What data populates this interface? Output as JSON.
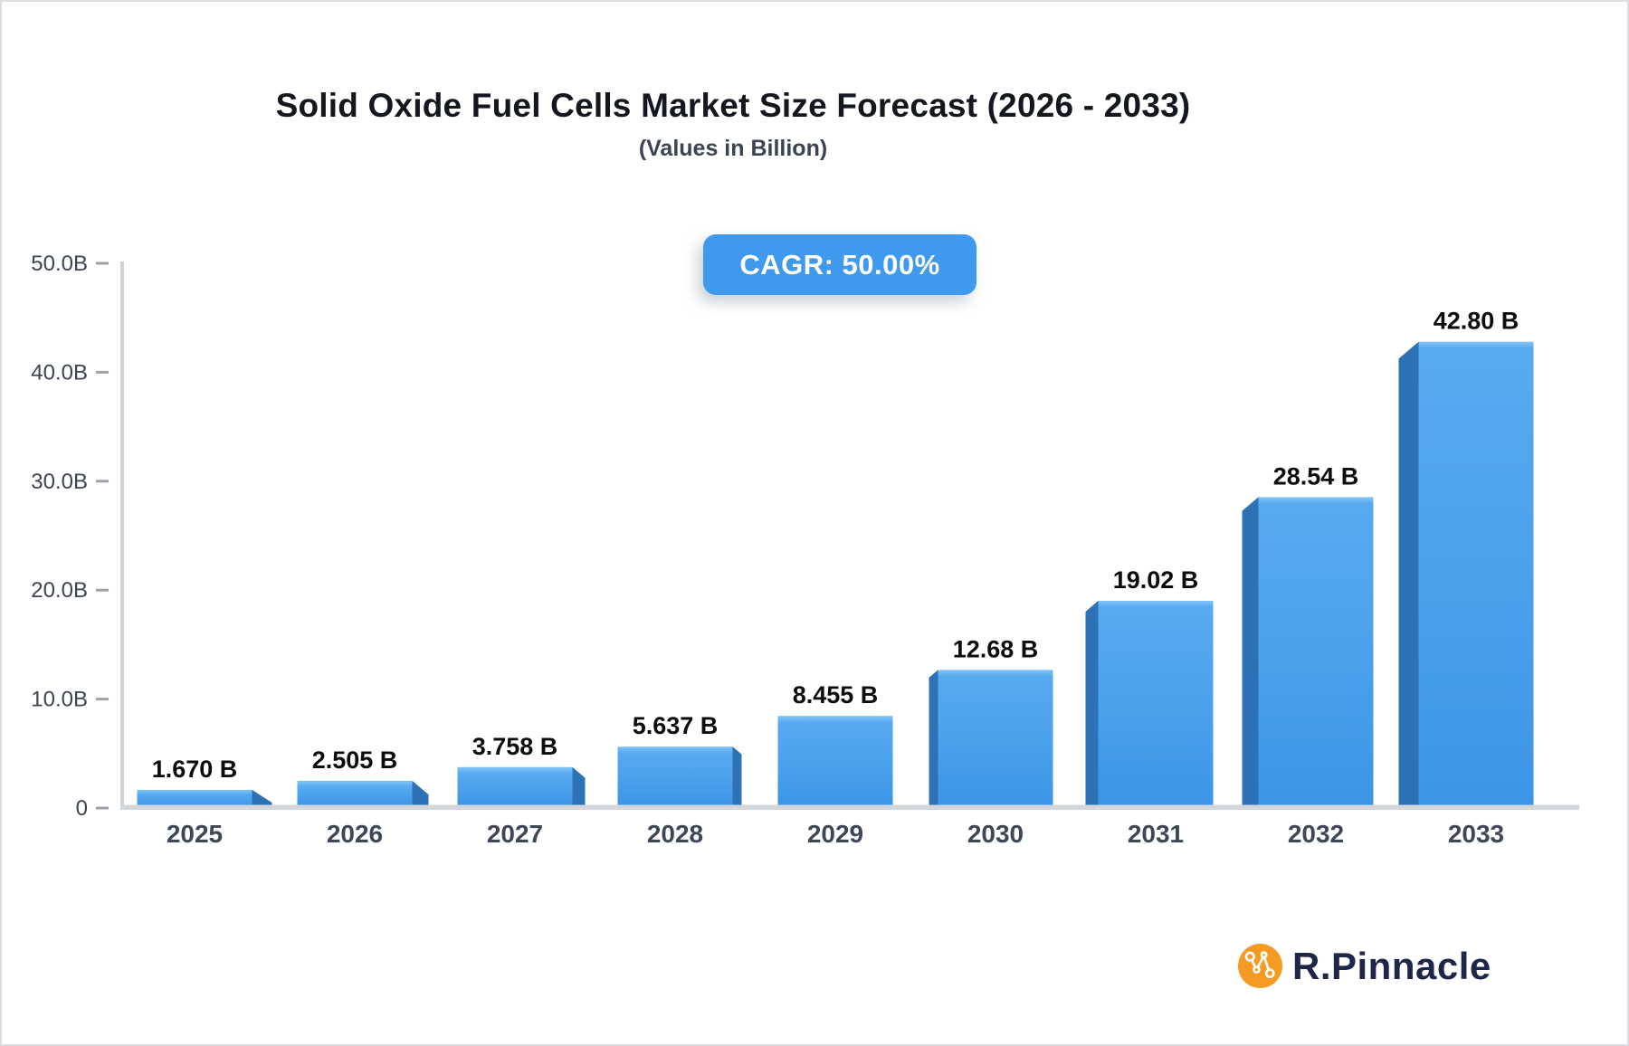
{
  "chart_data": {
    "type": "bar",
    "title": "Solid Oxide Fuel Cells Market Size Forecast (2026 - 2033)",
    "subtitle": "(Values in Billion)",
    "cagr_label": "CAGR: 50.00%",
    "categories": [
      "2025",
      "2026",
      "2027",
      "2028",
      "2029",
      "2030",
      "2031",
      "2032",
      "2033"
    ],
    "values": [
      1.67,
      2.505,
      3.758,
      5.637,
      8.455,
      12.68,
      19.02,
      28.54,
      42.8
    ],
    "value_labels": [
      "1.670 B",
      "2.505 B",
      "3.758 B",
      "5.637 B",
      "8.455 B",
      "12.68 B",
      "19.02 B",
      "28.54 B",
      "42.80 B"
    ],
    "yticks": [
      0,
      10,
      20,
      30,
      40,
      50
    ],
    "ytick_labels": [
      "0",
      "10.0B",
      "20.0B",
      "30.0B",
      "40.0B",
      "50.0B"
    ],
    "ylim": [
      0,
      50
    ],
    "xlabel": "",
    "ylabel": "",
    "grid": false,
    "legend": null,
    "colors": {
      "bar_face": "#4aa0eb",
      "bar_face_highlight": "#83c3f8",
      "bar_face_bottom": "#3c94e7",
      "bar_side": "#2d72b4",
      "axis_line": "#cdd2d8",
      "baseline": "#d3d6db",
      "tick_mark": "#9ca3ad",
      "tick_text": "#3c4454",
      "year_text": "#3d4757",
      "value_text": "#0d0d0d",
      "badge_bg": "#3f99ec",
      "badge_text": "#ffffff"
    }
  },
  "logo": {
    "text": "R.Pinnacle",
    "icon": "network-nodes-icon",
    "icon_color": "#f59a23",
    "text_color": "#1f2749"
  }
}
